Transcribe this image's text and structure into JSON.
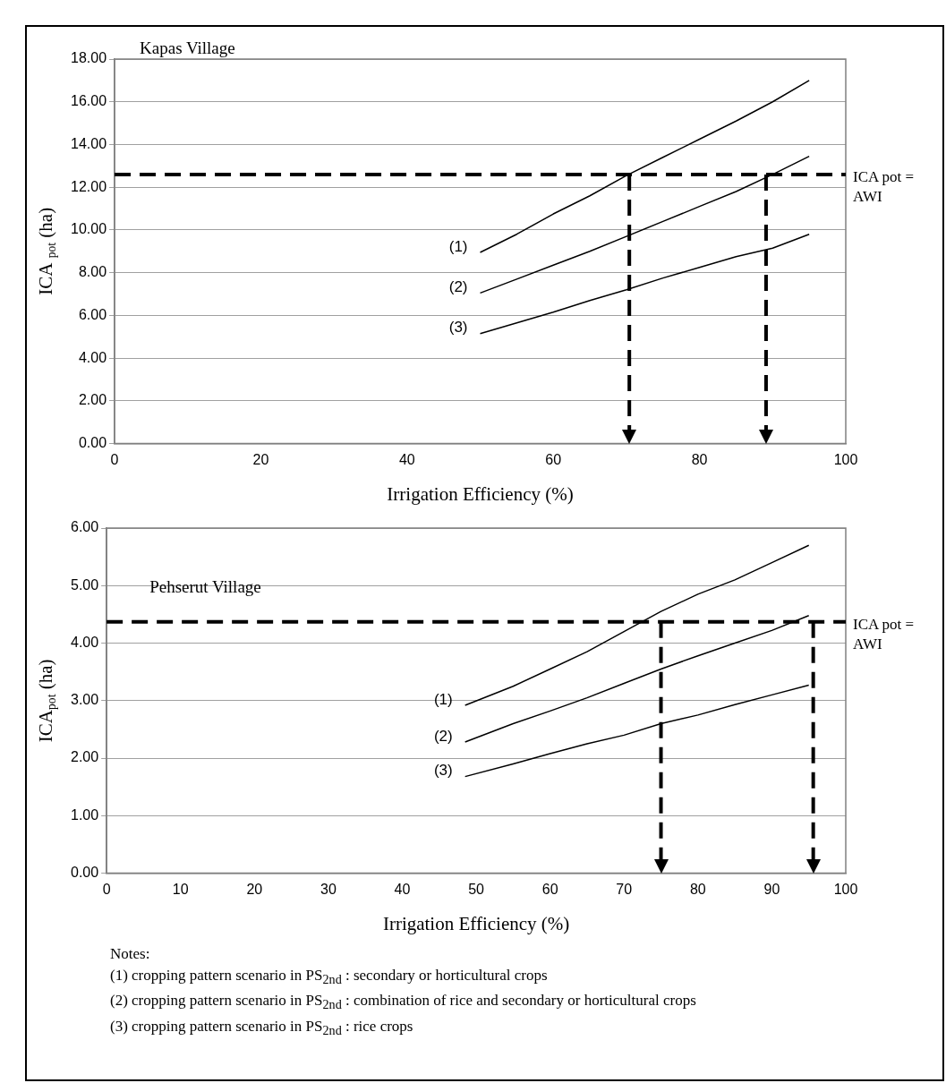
{
  "chart_data": [
    {
      "type": "line",
      "title": "Kapas Village",
      "xlabel": "Irrigation Efficiency (%)",
      "ylabel": "ICA $_{pot}$ (ha)",
      "legend": false,
      "marker": "none",
      "line_style": "solid",
      "grid": "y",
      "xlim": [
        0,
        100
      ],
      "xticks": [
        0,
        20,
        40,
        60,
        80,
        100
      ],
      "ylim": [
        0,
        18
      ],
      "yticks": [
        {
          "value": 0,
          "label": "0.00"
        },
        {
          "value": 2,
          "label": "2.00"
        },
        {
          "value": 4,
          "label": "4.00"
        },
        {
          "value": 6,
          "label": "6.00"
        },
        {
          "value": 8,
          "label": "8.00"
        },
        {
          "value": 10,
          "label": "10.00"
        },
        {
          "value": 12,
          "label": "12.00"
        },
        {
          "value": 14,
          "label": "14.00"
        },
        {
          "value": 16,
          "label": "16.00"
        },
        {
          "value": 18,
          "label": "18.00"
        }
      ],
      "series": [
        {
          "name": "(1)",
          "color": "#000000",
          "x": [
            50,
            55,
            60,
            65,
            70,
            75,
            80,
            85,
            90,
            95
          ],
          "values": [
            8.95,
            9.8,
            10.75,
            11.6,
            12.55,
            13.4,
            14.25,
            15.1,
            16.0,
            17.0
          ]
        },
        {
          "name": "(2)",
          "color": "#000000",
          "x": [
            50,
            55,
            60,
            65,
            70,
            75,
            80,
            85,
            90,
            95
          ],
          "values": [
            7.05,
            7.7,
            8.35,
            9.0,
            9.7,
            10.4,
            11.1,
            11.8,
            12.6,
            13.45
          ]
        },
        {
          "name": "(3)",
          "color": "#000000",
          "x": [
            50,
            55,
            60,
            65,
            70,
            75,
            80,
            85,
            90,
            95
          ],
          "values": [
            5.15,
            5.65,
            6.15,
            6.7,
            7.2,
            7.75,
            8.25,
            8.75,
            9.15,
            9.8
          ]
        }
      ],
      "ref_lines": [
        {
          "axis": "y",
          "value": 12.6,
          "label": "ICA pot = AWI",
          "line_style": "dashed",
          "color": "#000000"
        },
        {
          "axis": "x",
          "value": 70.4,
          "line_style": "dashed",
          "color": "#000000"
        },
        {
          "axis": "x",
          "value": 89.1,
          "line_style": "dashed",
          "color": "#000000"
        }
      ]
    },
    {
      "type": "line",
      "title": "Pehserut Village",
      "xlabel": "Irrigation Efficiency (%)",
      "ylabel": "ICA$_{pot}$ (ha)",
      "legend": false,
      "marker": "none",
      "line_style": "solid",
      "grid": "y",
      "xlim": [
        0,
        100
      ],
      "xticks": [
        0,
        10,
        20,
        30,
        40,
        50,
        60,
        70,
        80,
        90,
        100
      ],
      "ylim": [
        0,
        6
      ],
      "yticks": [
        {
          "value": 0,
          "label": "0.00"
        },
        {
          "value": 1,
          "label": "1.00"
        },
        {
          "value": 2,
          "label": "2.00"
        },
        {
          "value": 3,
          "label": "3.00"
        },
        {
          "value": 4,
          "label": "4.00"
        },
        {
          "value": 5,
          "label": "5.00"
        },
        {
          "value": 6,
          "label": "6.00"
        }
      ],
      "series": [
        {
          "name": "(1)",
          "color": "#000000",
          "x": [
            48.5,
            55,
            60,
            65,
            70,
            75,
            80,
            85,
            90,
            95
          ],
          "values": [
            2.92,
            3.25,
            3.55,
            3.85,
            4.2,
            4.55,
            4.85,
            5.1,
            5.4,
            5.7
          ]
        },
        {
          "name": "(2)",
          "color": "#000000",
          "x": [
            48.5,
            55,
            60,
            65,
            70,
            75,
            80,
            85,
            90,
            95
          ],
          "values": [
            2.28,
            2.6,
            2.82,
            3.05,
            3.3,
            3.55,
            3.78,
            4.0,
            4.22,
            4.48
          ]
        },
        {
          "name": "(3)",
          "color": "#000000",
          "x": [
            48.5,
            55,
            60,
            65,
            70,
            75,
            80,
            85,
            90,
            95
          ],
          "values": [
            1.68,
            1.9,
            2.08,
            2.25,
            2.4,
            2.6,
            2.75,
            2.93,
            3.1,
            3.27
          ]
        }
      ],
      "ref_lines": [
        {
          "axis": "y",
          "value": 4.37,
          "label": "ICA pot = AWI",
          "line_style": "dashed",
          "color": "#000000"
        },
        {
          "axis": "x",
          "value": 75,
          "line_style": "dashed",
          "color": "#000000"
        },
        {
          "axis": "x",
          "value": 95.6,
          "line_style": "dashed",
          "color": "#000000"
        }
      ],
      "annotations": [
        "Notes:",
        "(1) cropping pattern scenario in PS$_{2nd}$ : secondary or horticultural crops",
        "(2) cropping pattern scenario in PS$_{2nd}$ : combination of rice and secondary or horticultural crops",
        "(3) cropping pattern scenario in PS$_{2nd}$ : rice crops"
      ]
    }
  ]
}
